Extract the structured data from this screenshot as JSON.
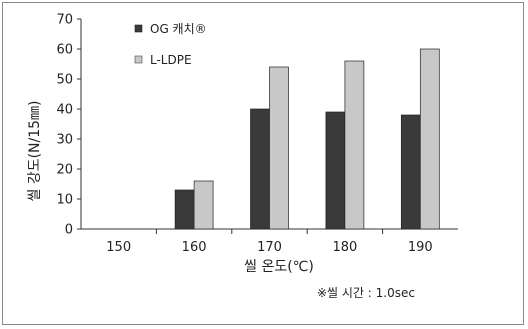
{
  "chart_data": {
    "type": "bar",
    "categories": [
      "150",
      "160",
      "170",
      "180",
      "190"
    ],
    "series": [
      {
        "name": "OG 캐치®",
        "values": [
          0,
          13,
          40,
          39,
          38
        ],
        "color": "#3a3a3a"
      },
      {
        "name": "L-LDPE",
        "values": [
          0,
          16,
          54,
          56,
          60
        ],
        "color": "#c8c8c8"
      }
    ],
    "xlabel": "씰 온도(℃)",
    "ylabel": "씰 강도(N/15㎜)",
    "ylim": [
      0,
      70
    ],
    "yticks": [
      0,
      10,
      20,
      30,
      40,
      50,
      60,
      70
    ],
    "legend_position": "top-left",
    "note": "※씰 시간 : 1.0sec",
    "grid": false
  }
}
